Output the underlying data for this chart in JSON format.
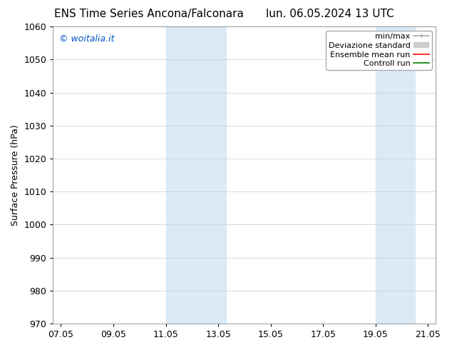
{
  "title_left": "ENS Time Series Ancona/Falconara",
  "title_right": "lun. 06.05.2024 13 UTC",
  "ylabel": "Surface Pressure (hPa)",
  "ylim": [
    970,
    1060
  ],
  "yticks": [
    970,
    980,
    990,
    1000,
    1010,
    1020,
    1030,
    1040,
    1050,
    1060
  ],
  "xtick_labels": [
    "07.05",
    "09.05",
    "11.05",
    "13.05",
    "15.05",
    "17.05",
    "19.05",
    "21.05"
  ],
  "x_tick_positions": [
    0,
    2,
    4,
    6,
    8,
    10,
    12,
    14
  ],
  "xlim": [
    -0.3,
    14.3
  ],
  "shaded_bands": [
    {
      "x_start": 4.0,
      "x_end": 6.3,
      "color": "#daeaf7"
    },
    {
      "x_start": 12.0,
      "x_end": 13.5,
      "color": "#daeaf7"
    }
  ],
  "watermark_text": "© woitalia.it",
  "watermark_color": "#0055cc",
  "background_color": "#ffffff",
  "plot_bg_color": "#ffffff",
  "grid_color": "#cccccc",
  "legend_items": [
    {
      "label": "min/max",
      "color": "#aaaaaa",
      "lw": 1.2,
      "style": "minmax"
    },
    {
      "label": "Deviazione standard",
      "color": "#cccccc",
      "lw": 5,
      "style": "band"
    },
    {
      "label": "Ensemble mean run",
      "color": "#ff0000",
      "lw": 1.2,
      "style": "line"
    },
    {
      "label": "Controll run",
      "color": "#008000",
      "lw": 1.2,
      "style": "line"
    }
  ],
  "title_fontsize": 11,
  "tick_fontsize": 9,
  "ylabel_fontsize": 9,
  "legend_fontsize": 8,
  "watermark_fontsize": 9
}
